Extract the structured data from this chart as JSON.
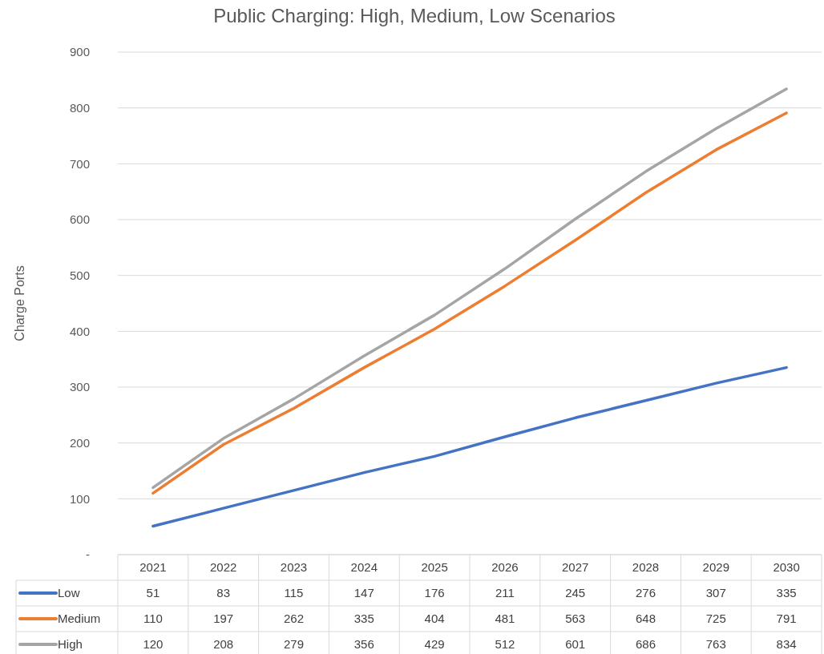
{
  "chart_data": {
    "type": "line",
    "title": "Public Charging: High, Medium, Low Scenarios",
    "ylabel": "Charge Ports",
    "categories": [
      "2021",
      "2022",
      "2023",
      "2024",
      "2025",
      "2026",
      "2027",
      "2028",
      "2029",
      "2030"
    ],
    "series": [
      {
        "name": "Low",
        "color": "#4472c4",
        "values": [
          51,
          83,
          115,
          147,
          176,
          211,
          245,
          276,
          307,
          335
        ]
      },
      {
        "name": "Medium",
        "color": "#ed7d31",
        "values": [
          110,
          197,
          262,
          335,
          404,
          481,
          563,
          648,
          725,
          791
        ]
      },
      {
        "name": "High",
        "color": "#a5a5a5",
        "values": [
          120,
          208,
          279,
          356,
          429,
          512,
          601,
          686,
          763,
          834
        ]
      }
    ],
    "ylim": [
      0,
      900
    ],
    "yticks": [
      {
        "value": 0,
        "label": "-"
      },
      100,
      200,
      300,
      400,
      500,
      600,
      700,
      800,
      900
    ],
    "grid": "y",
    "legend": "bottom",
    "data_labels": true,
    "marker": "none",
    "line_style": "solid"
  }
}
